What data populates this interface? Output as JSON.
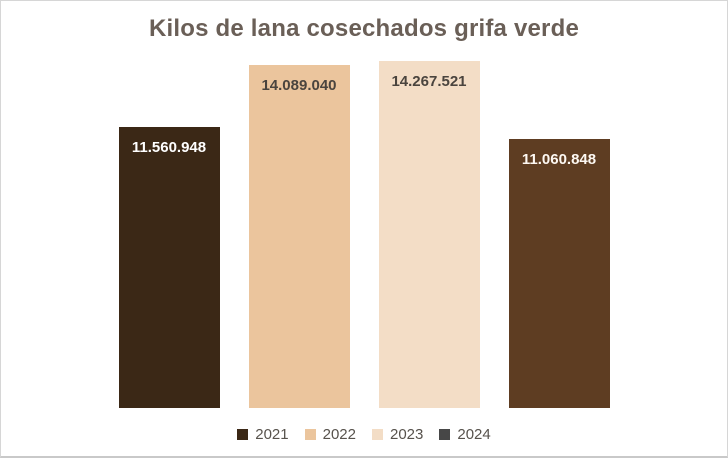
{
  "chart_data": {
    "type": "bar",
    "title": "Kilos de lana cosechados grifa verde",
    "categories": [
      "2021",
      "2022",
      "2023",
      "2024"
    ],
    "values": [
      11560948,
      14089040,
      14267521,
      11060848
    ],
    "value_labels": [
      "11.560.948",
      "14.089.040",
      "14.267.521",
      "11.060.848"
    ],
    "bar_colors": [
      "#3B2816",
      "#EBC59D",
      "#F3DDC6",
      "#5E3D22"
    ],
    "value_label_colors": [
      "#FFFFFF",
      "#4A443E",
      "#4A443E",
      "#FDF8F2"
    ],
    "value_label_position": "inside-end",
    "legend": [
      {
        "label": "2021",
        "color": "#3B2816"
      },
      {
        "label": "2022",
        "color": "#EBC59D"
      },
      {
        "label": "2023",
        "color": "#F3DDC6"
      },
      {
        "label": "2024",
        "color": "#474747"
      }
    ],
    "legend_position": "bottom",
    "xlabel": "",
    "ylabel": "",
    "ylim": [
      0,
      14700000
    ],
    "grid": false,
    "axes_visible": false
  },
  "style": {
    "title_color": "#6A5F57",
    "legend_text_color": "#57524C",
    "background": "#FFFFFF",
    "frame_border_color": "#D6D6D6"
  }
}
